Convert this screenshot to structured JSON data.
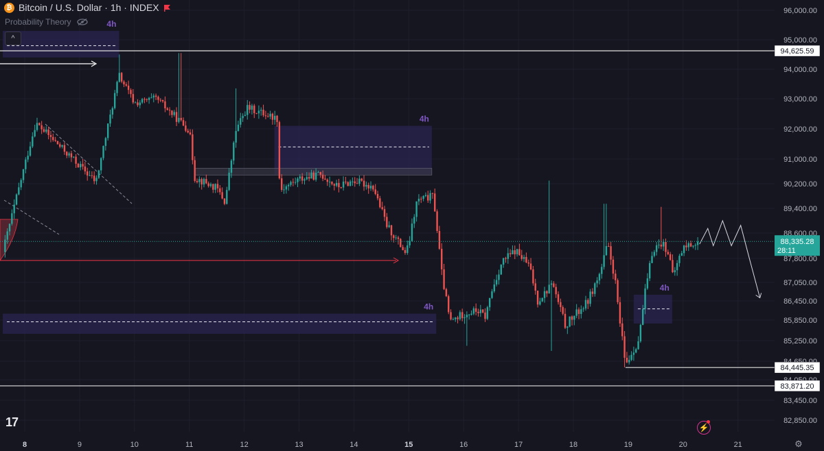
{
  "header": {
    "symbol_icon": "bitcoin-icon",
    "title": "Bitcoin / U.S. Dollar · 1h · INDEX",
    "flag_icon": "flag-icon"
  },
  "indicator": {
    "name": "Probability Theory",
    "icon": "eye-off-icon",
    "collapse_icon": "chevron-up-icon"
  },
  "logo": "17",
  "colors": {
    "background": "#161621",
    "up": "#26a69a",
    "down": "#ef5350",
    "zone_fill": "#2a2450",
    "zone_label": "#7e57c2",
    "level_line": "#e0e0e0",
    "current_price": "#26a69a"
  },
  "chart_data": {
    "type": "candlestick",
    "title": "Bitcoin / U.S. Dollar · 1h · INDEX",
    "x_ticks": [
      "8",
      "9",
      "10",
      "11",
      "12",
      "13",
      "14",
      "15",
      "16",
      "17",
      "18",
      "19",
      "20",
      "21"
    ],
    "y_ticks": [
      "96,000.00",
      "95,000.00",
      "94,000.00",
      "93,000.00",
      "92,000.00",
      "91,000.00",
      "90,200.00",
      "89,400.00",
      "88,600.00",
      "87,800.00",
      "87,050.00",
      "86,450.00",
      "85,850.00",
      "85,250.00",
      "84,650.00",
      "84,050.00",
      "83,450.00",
      "82,850.00"
    ],
    "ylim": [
      82300,
      96300
    ],
    "current_price": {
      "value": "88,335.28",
      "countdown": "28:11"
    },
    "price_levels": [
      {
        "value": 94625.59,
        "label": "94,625.59"
      },
      {
        "value": 84445.35,
        "label": "84,445.35"
      },
      {
        "value": 83871.2,
        "label": "83,871.20"
      }
    ],
    "zones": [
      {
        "label": "4h",
        "x_start": 7.6,
        "x_end": 9.72,
        "y_top": 95300,
        "y_bottom": 94400,
        "mid": 94800
      },
      {
        "label": "4h",
        "x_start": 12.55,
        "x_end": 15.42,
        "y_top": 92100,
        "y_bottom": 90500,
        "mid": 91400
      },
      {
        "label": "4h",
        "x_start": 7.6,
        "x_end": 15.5,
        "y_top": 86050,
        "y_bottom": 85450,
        "mid": 85800
      },
      {
        "label": "4h",
        "x_start": 19.1,
        "x_end": 19.8,
        "y_top": 86650,
        "y_bottom": 85750,
        "mid": 86200
      }
    ],
    "path_points": [
      [
        20.3,
        88250
      ],
      [
        20.45,
        88750
      ],
      [
        20.55,
        88200
      ],
      [
        20.72,
        89000
      ],
      [
        20.88,
        88200
      ],
      [
        21.05,
        88850
      ],
      [
        21.2,
        87850
      ],
      [
        21.4,
        86550
      ]
    ],
    "anchors": [
      [
        7.6,
        88000
      ],
      [
        8.2,
        92200
      ],
      [
        9.3,
        90250
      ],
      [
        9.72,
        93800
      ],
      [
        10.0,
        92850
      ],
      [
        10.4,
        93000
      ],
      [
        10.8,
        92300
      ],
      [
        11.0,
        91950
      ],
      [
        11.1,
        90400
      ],
      [
        11.5,
        90050
      ],
      [
        11.65,
        89600
      ],
      [
        11.85,
        91950
      ],
      [
        12.05,
        92700
      ],
      [
        12.3,
        92550
      ],
      [
        12.6,
        92350
      ],
      [
        12.65,
        90000
      ],
      [
        13.0,
        90350
      ],
      [
        13.4,
        90500
      ],
      [
        13.7,
        90100
      ],
      [
        14.0,
        90300
      ],
      [
        14.35,
        90100
      ],
      [
        14.6,
        88850
      ],
      [
        14.95,
        87950
      ],
      [
        15.0,
        88250
      ],
      [
        15.15,
        89650
      ],
      [
        15.45,
        89800
      ],
      [
        15.6,
        87350
      ],
      [
        15.75,
        85800
      ],
      [
        16.0,
        86050
      ],
      [
        16.25,
        86150
      ],
      [
        16.4,
        85950
      ],
      [
        16.5,
        86700
      ],
      [
        16.7,
        87700
      ],
      [
        16.95,
        88050
      ],
      [
        17.2,
        87550
      ],
      [
        17.35,
        86450
      ],
      [
        17.55,
        86850
      ],
      [
        17.6,
        87100
      ],
      [
        17.75,
        86250
      ],
      [
        17.85,
        85700
      ],
      [
        18.0,
        85950
      ],
      [
        18.25,
        86400
      ],
      [
        18.5,
        87400
      ],
      [
        18.62,
        88250
      ],
      [
        18.75,
        87250
      ],
      [
        18.85,
        85750
      ],
      [
        18.95,
        84550
      ],
      [
        19.2,
        85300
      ],
      [
        19.3,
        86650
      ],
      [
        19.45,
        88100
      ],
      [
        19.62,
        88300
      ],
      [
        19.75,
        87950
      ],
      [
        19.8,
        87200
      ],
      [
        20.0,
        88150
      ],
      [
        20.3,
        88335
      ]
    ],
    "spikes": [
      [
        9.72,
        94500
      ],
      [
        10.83,
        94550
      ],
      [
        11.85,
        93350
      ],
      [
        17.55,
        90300
      ],
      [
        17.6,
        84950
      ],
      [
        18.58,
        89550
      ],
      [
        18.6,
        88950
      ],
      [
        18.95,
        84450
      ],
      [
        19.6,
        89450
      ],
      [
        16.05,
        85100
      ]
    ]
  }
}
